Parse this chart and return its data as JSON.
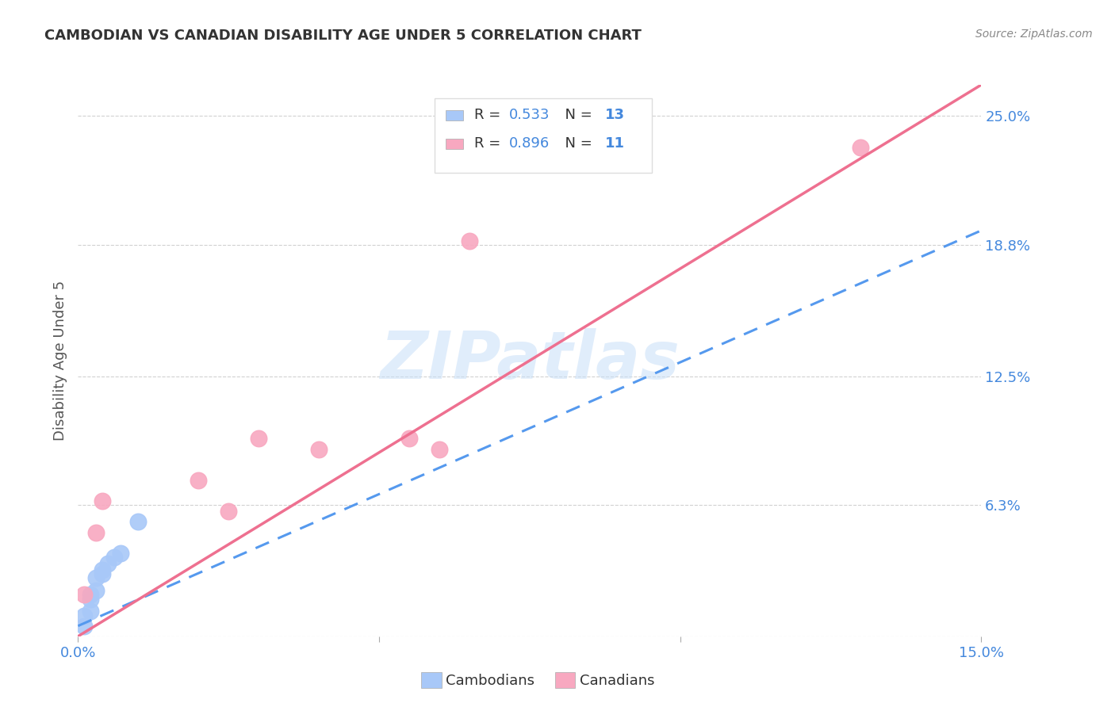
{
  "title": "CAMBODIAN VS CANADIAN DISABILITY AGE UNDER 5 CORRELATION CHART",
  "source": "Source: ZipAtlas.com",
  "ylabel": "Disability Age Under 5",
  "x_min": 0.0,
  "x_max": 0.15,
  "y_min": 0.0,
  "y_max": 0.265,
  "cambodian_color": "#a8c8f8",
  "canadian_color": "#f8a8c0",
  "cambodian_line_color": "#5599ee",
  "canadian_line_color": "#ee7090",
  "R_cambodian": "0.533",
  "N_cambodian": "13",
  "R_canadian": "0.896",
  "N_canadian": "11",
  "camb_x": [
    0.001,
    0.001,
    0.002,
    0.002,
    0.002,
    0.003,
    0.003,
    0.004,
    0.004,
    0.005,
    0.006,
    0.007,
    0.01
  ],
  "camb_y": [
    0.005,
    0.01,
    0.012,
    0.018,
    0.02,
    0.022,
    0.028,
    0.03,
    0.032,
    0.035,
    0.038,
    0.04,
    0.055
  ],
  "cana_x": [
    0.001,
    0.003,
    0.004,
    0.02,
    0.025,
    0.03,
    0.04,
    0.055,
    0.06,
    0.065,
    0.13
  ],
  "cana_y": [
    0.02,
    0.05,
    0.065,
    0.075,
    0.06,
    0.095,
    0.09,
    0.095,
    0.09,
    0.19,
    0.235
  ],
  "camb_line_x": [
    0.0,
    0.15
  ],
  "camb_line_y": [
    0.005,
    0.195
  ],
  "cana_line_x": [
    0.0,
    0.15
  ],
  "cana_line_y": [
    0.0,
    0.265
  ],
  "watermark_text": "ZIPatlas",
  "watermark_color": "#c8dff8",
  "bg_color": "#ffffff",
  "grid_color": "#cccccc",
  "tick_color": "#4488dd",
  "title_color": "#333333",
  "source_color": "#888888",
  "ylabel_color": "#555555",
  "x_ticks": [
    0.0,
    0.05,
    0.1,
    0.15
  ],
  "x_tick_labels": [
    "0.0%",
    "",
    "",
    "15.0%"
  ],
  "y_ticks": [
    0.0,
    0.063,
    0.125,
    0.188,
    0.25
  ],
  "y_tick_labels": [
    "",
    "6.3%",
    "12.5%",
    "18.8%",
    "25.0%"
  ],
  "legend_label1": "R = 0.533   N = 13",
  "legend_label2": "R = 0.896   N = 11",
  "bottom_label_camb": "Cambodians",
  "bottom_label_cana": "Canadians"
}
